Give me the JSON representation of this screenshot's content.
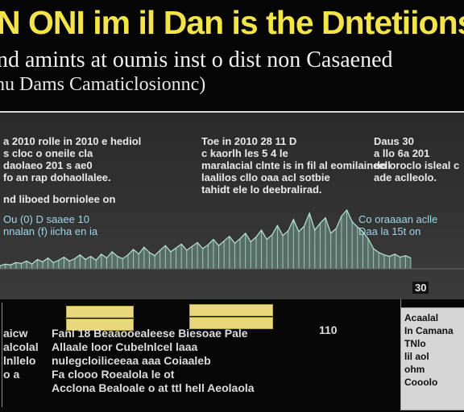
{
  "header": {
    "title": "N ONI im il Dan is the Dntetiions",
    "subtitle": "nd amints at oumis inst o dist non Casaened",
    "subtitle2": "hu Dams Camaticlosionnc)"
  },
  "annotations": {
    "left": "a 2010 rolle in 2010 e hediol\ns cloc o oneile cla\ndaolaeo 201 s ae0\nfo an rap dohaollalee.",
    "left2": "nd liboed borniolee on",
    "mid": "Toe in 2010 28 11 D\nc kaorlh les 5 4 le\nmaralacial clnte is in fil al eomilaineell\nlaalilos cllo oaa acl sotbie\ntahidt ele lo deebralirad.",
    "right": "Daus 30\na llo 6a 201\ndo oroclo isleal c\nade aclleolo.",
    "blue_left": "Ou (0) D saaee 10\nnnalan (f) iicha en ia",
    "blue_right": "Co oraaaan aclle\nDaa la 15t on",
    "tick_label": "110",
    "callout_value": "30"
  },
  "tags": [
    "",
    "",
    "",
    ""
  ],
  "bottom": {
    "col1": "aicw\nalcolal\nlnllelo\no a",
    "col2": "Fanl 18 Beaaooealeese Biesoae Pale\nAllaale loor Cubelnlcel laaa\nnulegcloiliceeaa aaa Coiaaleb\nFa clooo Roealola le ot\nAcclona Bealoale o at ttl hell Aeolaola",
    "col3": "Acaalal\nIn Camana\nTNlo\nlil aol\nohm\nCooolo"
  },
  "chart_data": {
    "type": "area",
    "title": "",
    "xlabel": "",
    "ylabel": "",
    "ylim": [
      0,
      10
    ],
    "series": [
      {
        "values": [
          0.4,
          0.6,
          0.5,
          0.8,
          0.7,
          1.0,
          0.6,
          1.2,
          0.9,
          1.4,
          0.8,
          1.1,
          1.5,
          1.0,
          1.3,
          1.8,
          1.2,
          1.6,
          1.1,
          1.9,
          1.4,
          2.2,
          1.6,
          1.3,
          1.8,
          2.5,
          1.9,
          2.8,
          2.1,
          1.7,
          2.4,
          3.0,
          2.2,
          2.7,
          3.2,
          2.4,
          2.9,
          3.4,
          2.6,
          3.1,
          3.8,
          3.0,
          3.6,
          4.2,
          3.3,
          3.9,
          4.6,
          3.5,
          4.1,
          5.0,
          3.8,
          4.4,
          5.6,
          4.3,
          4.9,
          6.4,
          4.8,
          5.5,
          7.2,
          5.0,
          5.9,
          6.6,
          4.6,
          5.2,
          6.8,
          7.6,
          6.1,
          5.4,
          4.8,
          3.9,
          2.6,
          2.1,
          1.8,
          1.6,
          1.9,
          1.5,
          1.7,
          1.4
        ]
      }
    ]
  },
  "colors": {
    "title": "#f3e44a",
    "series": "#b9e6d6",
    "panel": "#333333"
  }
}
